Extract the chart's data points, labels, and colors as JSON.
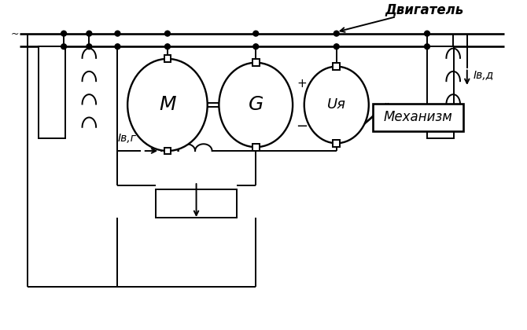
{
  "bg_color": "#ffffff",
  "lw": 1.4,
  "label_M": "M",
  "label_G": "G",
  "label_Uya": "Uя",
  "label_IvG": "Iв,г",
  "label_IvD": "Iв,д",
  "label_Dvigatel": "Двигатель",
  "label_Mekhanizm": "Механизм",
  "label_plus": "+",
  "label_minus": "−"
}
